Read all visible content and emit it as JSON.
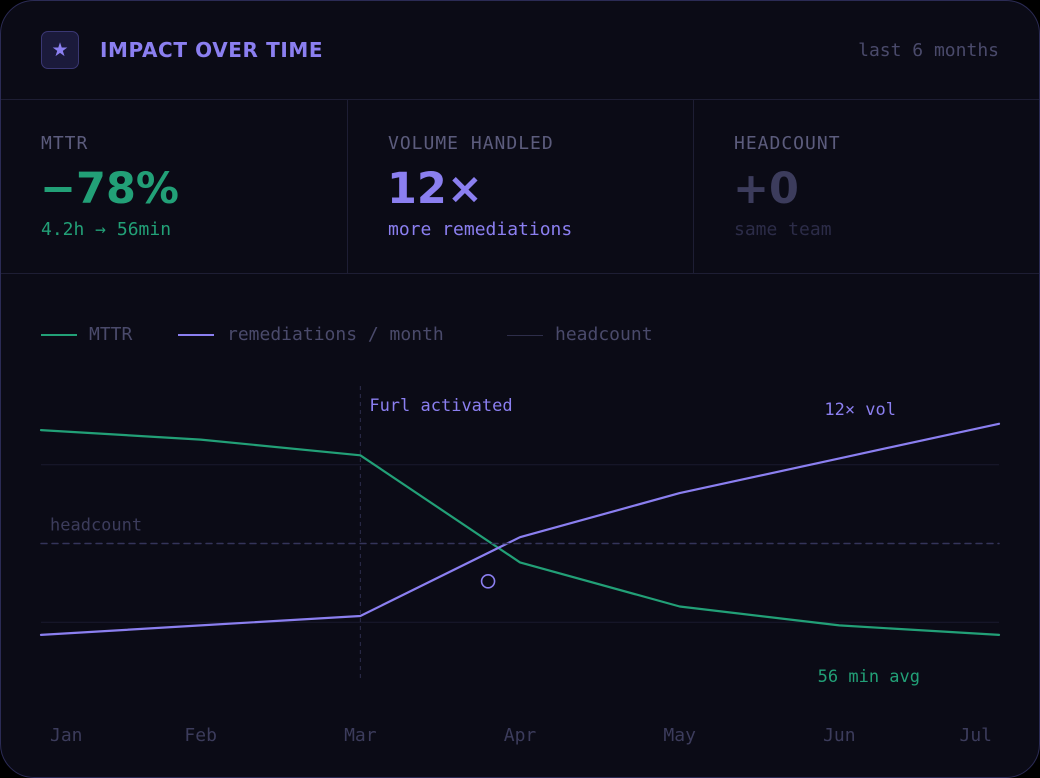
{
  "header": {
    "icon": "star-icon",
    "star_glyph": "★",
    "title": "IMPACT OVER TIME",
    "period": "last 6 months"
  },
  "stats": [
    {
      "label": "MTTR",
      "value": "−78%",
      "sub": "4.2h → 56min"
    },
    {
      "label": "VOLUME HANDLED",
      "value": "12×",
      "sub": "more remediations"
    },
    {
      "label": "HEADCOUNT",
      "value": "+0",
      "sub": "same team"
    }
  ],
  "colors": {
    "mttr": "#22a077",
    "remediations": "#8b7ff0",
    "headcount": "#3c3c5c",
    "grid": "#1a1a2e",
    "tick": "#3c3c5c"
  },
  "legend": [
    {
      "label": "MTTR",
      "color": "#22a077"
    },
    {
      "label": "remediations / month",
      "color": "#8b7ff0"
    },
    {
      "label": "headcount",
      "color": "#2e2e4a"
    }
  ],
  "chart_data": {
    "type": "line",
    "categories": [
      "Jan",
      "Feb",
      "Mar",
      "Apr",
      "May",
      "Jun",
      "Jul"
    ],
    "ylim": [
      0,
      100
    ],
    "grid": true,
    "series": [
      {
        "name": "MTTR",
        "values": [
          86,
          83,
          78,
          44,
          30,
          24,
          21
        ]
      },
      {
        "name": "remediations / month",
        "values": [
          21,
          24,
          27,
          52,
          66,
          77,
          88
        ]
      },
      {
        "name": "headcount",
        "values": [
          50,
          50,
          50,
          50,
          50,
          50,
          50
        ]
      }
    ],
    "annotations": {
      "event_label": "Furl activated",
      "event_category": "Mar",
      "headcount_label": "headcount",
      "vol_label": "12× vol",
      "mttr_label": "56 min avg",
      "marker": {
        "x": 3.8,
        "y": 38
      }
    }
  }
}
